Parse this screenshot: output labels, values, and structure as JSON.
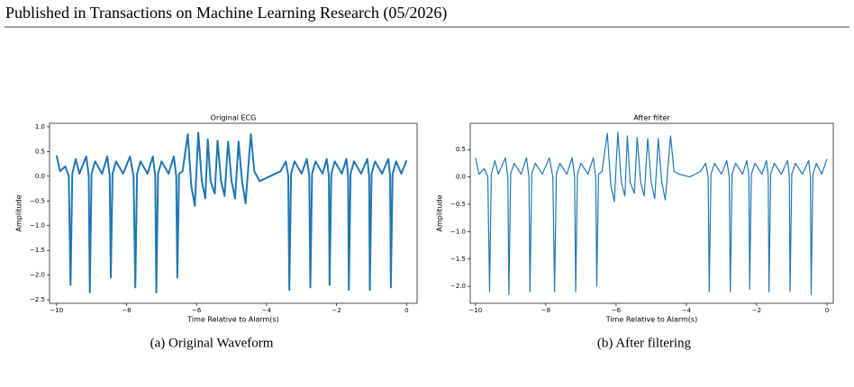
{
  "header": "Published in Transactions on Machine Learning Research (05/2026)",
  "captions": [
    "(a) Original Waveform",
    "(b) After filtering"
  ],
  "chart_data": [
    {
      "type": "line",
      "title": "Original ECG",
      "xlabel": "Time Relative to Alarm(s)",
      "ylabel": "Amplitude",
      "xlim": [
        -10.2,
        0.3
      ],
      "ylim": [
        -2.57,
        1.07
      ],
      "xticks": [
        {
          "value": -10,
          "label": "−10"
        },
        {
          "value": -8,
          "label": "−8"
        },
        {
          "value": -6,
          "label": "−6"
        },
        {
          "value": -4,
          "label": "−4"
        },
        {
          "value": -2,
          "label": "−2"
        },
        0
      ],
      "yticks": [
        {
          "value": -2.5,
          "label": "−2.5"
        },
        {
          "value": -2.0,
          "label": "−2.0"
        },
        {
          "value": -1.5,
          "label": "−1.5"
        },
        {
          "value": -1.0,
          "label": "−1.0"
        },
        {
          "value": -0.5,
          "label": "−0.5"
        },
        {
          "value": 0,
          "label": "0.0"
        },
        0.5,
        {
          "value": 1.0,
          "label": "1.0"
        }
      ],
      "color": "#1f77b4",
      "line_width": 2,
      "x": [
        -10.0,
        -9.9,
        -9.75,
        -9.65,
        -9.6,
        -9.55,
        -9.45,
        -9.35,
        -9.15,
        -9.08,
        -9.05,
        -9.0,
        -8.9,
        -8.7,
        -8.55,
        -8.48,
        -8.45,
        -8.4,
        -8.3,
        -8.1,
        -7.9,
        -7.8,
        -7.75,
        -7.7,
        -7.6,
        -7.4,
        -7.25,
        -7.18,
        -7.15,
        -7.1,
        -7.0,
        -6.8,
        -6.65,
        -6.58,
        -6.55,
        -6.5,
        -6.4,
        -6.25,
        -6.15,
        -6.05,
        -5.95,
        -5.85,
        -5.75,
        -5.68,
        -5.6,
        -5.48,
        -5.4,
        -5.3,
        -5.2,
        -5.1,
        -5.0,
        -4.9,
        -4.8,
        -4.7,
        -4.6,
        -4.45,
        -4.35,
        -4.2,
        -3.9,
        -3.6,
        -3.45,
        -3.38,
        -3.35,
        -3.3,
        -3.2,
        -3.0,
        -2.85,
        -2.78,
        -2.75,
        -2.7,
        -2.6,
        -2.4,
        -2.28,
        -2.22,
        -2.2,
        -2.15,
        -2.05,
        -1.85,
        -1.72,
        -1.67,
        -1.65,
        -1.6,
        -1.5,
        -1.3,
        -1.12,
        -1.07,
        -1.05,
        -1.0,
        -0.9,
        -0.7,
        -0.52,
        -0.47,
        -0.45,
        -0.4,
        -0.3,
        -0.15,
        0.0
      ],
      "values": [
        0.42,
        0.1,
        0.2,
        0.0,
        -2.2,
        0.05,
        0.35,
        0.05,
        0.4,
        0.0,
        -2.35,
        0.05,
        0.3,
        0.05,
        0.4,
        0.0,
        -2.05,
        0.05,
        0.3,
        0.05,
        0.4,
        0.0,
        -2.25,
        0.05,
        0.3,
        0.05,
        0.4,
        0.0,
        -2.35,
        0.05,
        0.3,
        0.05,
        0.4,
        0.0,
        -2.05,
        0.05,
        0.1,
        0.85,
        -0.2,
        -0.6,
        0.88,
        -0.1,
        -0.45,
        0.75,
        -0.1,
        -0.35,
        0.72,
        -0.1,
        -0.4,
        0.7,
        -0.1,
        -0.45,
        0.7,
        -0.1,
        -0.55,
        0.85,
        0.1,
        -0.1,
        0.0,
        0.1,
        0.3,
        0.0,
        -2.3,
        0.05,
        0.3,
        0.05,
        0.35,
        0.0,
        -2.25,
        0.05,
        0.3,
        0.05,
        0.35,
        0.0,
        -2.2,
        0.05,
        0.3,
        0.05,
        0.35,
        0.0,
        -2.3,
        0.05,
        0.3,
        0.05,
        0.35,
        0.0,
        -2.3,
        0.05,
        0.3,
        0.05,
        0.35,
        0.0,
        -2.25,
        0.05,
        0.3,
        0.05,
        0.32
      ]
    },
    {
      "type": "line",
      "title": "After filter",
      "xlabel": "Time Relative to Alarm(s)",
      "ylabel": "Amplitude",
      "xlim": [
        -10.15,
        0.18
      ],
      "ylim": [
        -2.31,
        0.98
      ],
      "xticks": [
        {
          "value": -10,
          "label": "−10"
        },
        {
          "value": -8,
          "label": "−8"
        },
        {
          "value": -6,
          "label": "−6"
        },
        {
          "value": -4,
          "label": "−4"
        },
        {
          "value": -2,
          "label": "−2"
        },
        0
      ],
      "yticks": [
        {
          "value": -2.0,
          "label": "−2.0"
        },
        {
          "value": -1.5,
          "label": "−1.5"
        },
        {
          "value": -1.0,
          "label": "−1.0"
        },
        {
          "value": -0.5,
          "label": "−0.5"
        },
        {
          "value": 0,
          "label": "0.0"
        },
        0.5
      ],
      "color": "#1f77b4",
      "line_width": 1.2,
      "x": [
        -10.0,
        -9.9,
        -9.75,
        -9.65,
        -9.6,
        -9.55,
        -9.45,
        -9.35,
        -9.15,
        -9.08,
        -9.05,
        -9.0,
        -8.9,
        -8.7,
        -8.55,
        -8.48,
        -8.45,
        -8.4,
        -8.3,
        -8.1,
        -7.9,
        -7.8,
        -7.75,
        -7.7,
        -7.6,
        -7.4,
        -7.25,
        -7.18,
        -7.15,
        -7.1,
        -7.0,
        -6.8,
        -6.65,
        -6.58,
        -6.55,
        -6.5,
        -6.4,
        -6.25,
        -6.15,
        -6.05,
        -5.95,
        -5.85,
        -5.75,
        -5.68,
        -5.6,
        -5.48,
        -5.4,
        -5.3,
        -5.2,
        -5.1,
        -5.0,
        -4.9,
        -4.8,
        -4.7,
        -4.6,
        -4.45,
        -4.35,
        -4.2,
        -3.9,
        -3.6,
        -3.45,
        -3.38,
        -3.35,
        -3.3,
        -3.2,
        -3.0,
        -2.85,
        -2.78,
        -2.75,
        -2.7,
        -2.6,
        -2.4,
        -2.28,
        -2.22,
        -2.2,
        -2.15,
        -2.05,
        -1.85,
        -1.72,
        -1.67,
        -1.65,
        -1.6,
        -1.5,
        -1.3,
        -1.12,
        -1.07,
        -1.05,
        -1.0,
        -0.9,
        -0.7,
        -0.52,
        -0.47,
        -0.45,
        -0.4,
        -0.3,
        -0.15,
        0.0
      ],
      "values": [
        0.35,
        0.05,
        0.15,
        0.0,
        -2.1,
        0.05,
        0.3,
        0.05,
        0.35,
        0.0,
        -2.15,
        0.05,
        0.25,
        0.05,
        0.35,
        0.0,
        -2.1,
        0.05,
        0.25,
        0.05,
        0.35,
        0.0,
        -2.1,
        0.05,
        0.25,
        0.05,
        0.35,
        0.0,
        -2.1,
        0.05,
        0.25,
        0.05,
        0.35,
        0.0,
        -2.0,
        0.05,
        0.1,
        0.8,
        -0.15,
        -0.45,
        0.82,
        -0.1,
        -0.35,
        0.75,
        -0.1,
        -0.3,
        0.72,
        -0.1,
        -0.35,
        0.7,
        -0.1,
        -0.4,
        0.7,
        -0.1,
        -0.42,
        0.75,
        0.1,
        0.05,
        0.0,
        0.1,
        0.25,
        0.0,
        -2.1,
        0.05,
        0.25,
        0.05,
        0.3,
        0.0,
        -2.1,
        0.05,
        0.25,
        0.05,
        0.3,
        0.0,
        -2.05,
        0.05,
        0.25,
        0.05,
        0.3,
        0.0,
        -2.1,
        0.05,
        0.25,
        0.05,
        0.3,
        0.0,
        -2.1,
        0.05,
        0.25,
        0.05,
        0.3,
        0.0,
        -2.15,
        0.05,
        0.25,
        0.05,
        0.33
      ]
    }
  ]
}
